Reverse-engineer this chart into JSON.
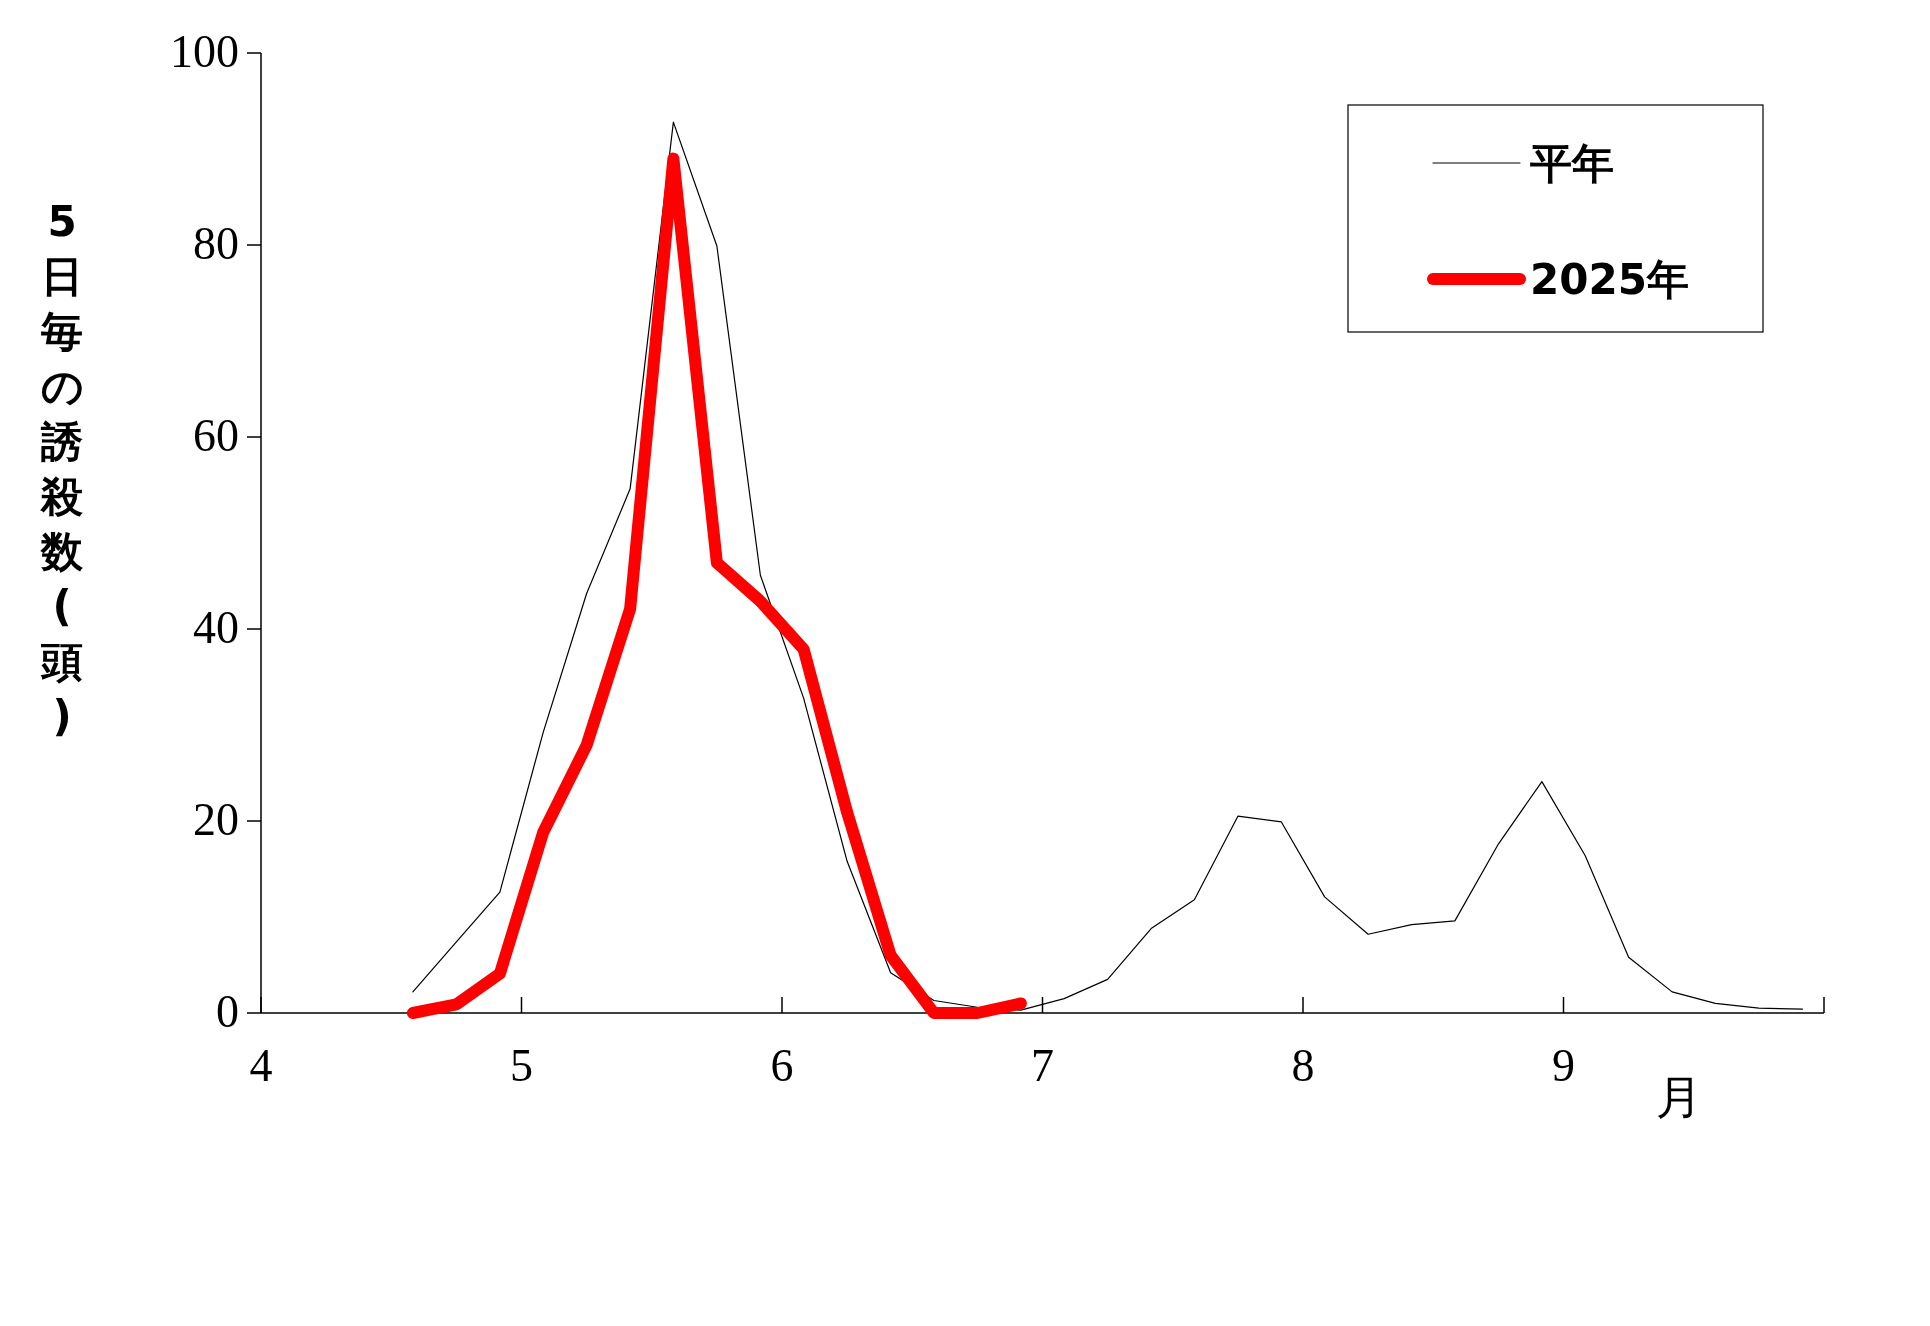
{
  "chart_data": {
    "type": "line",
    "xlabel": "月",
    "ylabel": "5日毎の誘殺数(頭)",
    "xlim": [
      4,
      10
    ],
    "xticks": [
      4,
      5,
      6,
      7,
      8,
      9,
      {
        "value": 10,
        "label": null
      }
    ],
    "ylim": [
      0,
      100
    ],
    "yticks": [
      0,
      20,
      40,
      60,
      80,
      100
    ],
    "legend": "top right",
    "grid": false,
    "marker": "none",
    "series": [
      {
        "name": "平年",
        "color": "#000000",
        "x": [
          4.583,
          4.75,
          4.917,
          5.083,
          5.25,
          5.417,
          5.583,
          5.75,
          5.917,
          6.083,
          6.25,
          6.417,
          6.583,
          6.75,
          6.917,
          7.083,
          7.25,
          7.417,
          7.583,
          7.75,
          7.917,
          8.083,
          8.25,
          8.417,
          8.583,
          8.75,
          8.917,
          9.083,
          9.25,
          9.417,
          9.583,
          9.75,
          9.917
        ],
        "values": [
          2.2,
          7.4,
          12.6,
          29.2,
          43.7,
          54.6,
          92.8,
          79.9,
          45.6,
          32.8,
          15.8,
          4.2,
          1.3,
          0.6,
          0.3,
          1.5,
          3.5,
          8.8,
          11.8,
          20.5,
          19.9,
          12.1,
          8.2,
          9.2,
          9.6,
          17.6,
          24.1,
          16.4,
          5.8,
          2.2,
          1.0,
          0.5,
          0.4
        ]
      },
      {
        "name": "2025年",
        "color": "#ff0000",
        "x": [
          4.583,
          4.75,
          4.917,
          5.083,
          5.25,
          5.417,
          5.583,
          5.75,
          5.917,
          6.083,
          6.25,
          6.417,
          6.583,
          6.75,
          6.917
        ],
        "values": [
          0,
          0.9,
          4.1,
          18.8,
          27.9,
          42.1,
          89.0,
          46.9,
          42.9,
          37.9,
          20.9,
          6.0,
          0,
          0,
          1.0
        ]
      }
    ]
  }
}
